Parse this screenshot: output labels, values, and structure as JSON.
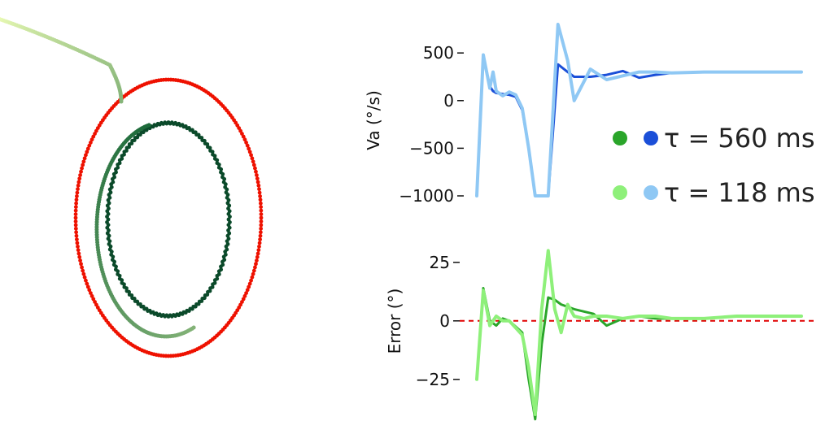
{
  "colors": {
    "red": "#ee1100",
    "dark_green": "#0b4a2a",
    "mid_green": "#2aa52a",
    "light_green": "#8ef07a",
    "dark_blue": "#1b4fd8",
    "light_blue": "#8fc8f4",
    "zero_line": "#e00000",
    "trail_start": "#f0ffb8",
    "trail_end": "#1c6a3a"
  },
  "chart_data": [
    {
      "type": "scatter",
      "description_series": [
        {
          "name": "",
          "shape": "ellipse",
          "values": [],
          "color": "#ee1100"
        },
        {
          "name": "",
          "shape": "ellipse",
          "values": [],
          "color": "#0b4a2a"
        },
        {
          "name": "",
          "shape": "trajectory",
          "values": [],
          "color": "#6cbf6c"
        }
      ]
    },
    {
      "type": "line",
      "title": "",
      "xlabel": "",
      "ylabel": "Va (°/s)",
      "ylim": [
        -1000,
        800
      ],
      "yticks": [
        500,
        0,
        -500,
        -1000
      ],
      "ytick_labels": [
        "500",
        "0",
        "−500",
        "−1000"
      ],
      "x": [
        0,
        0.02,
        0.04,
        0.05,
        0.06,
        0.08,
        0.1,
        0.12,
        0.14,
        0.16,
        0.18,
        0.2,
        0.22,
        0.25,
        0.28,
        0.3,
        0.35,
        0.4,
        0.45,
        0.5,
        0.55,
        0.6,
        0.7,
        0.8,
        0.9,
        1.0
      ],
      "series": [
        {
          "name": "τ = 560 ms",
          "color": "#1b4fd8",
          "values": [
            -1000,
            480,
            150,
            100,
            80,
            70,
            60,
            40,
            -100,
            -500,
            -1000,
            -1000,
            -1000,
            380,
            300,
            250,
            250,
            270,
            310,
            240,
            270,
            290,
            300,
            300,
            300,
            300
          ]
        },
        {
          "name": "τ = 118 ms",
          "color": "#8fc8f4",
          "values": [
            -1000,
            480,
            130,
            300,
            100,
            50,
            90,
            60,
            -80,
            -500,
            -1000,
            -1000,
            -1000,
            800,
            420,
            0,
            330,
            220,
            260,
            300,
            300,
            290,
            300,
            300,
            300,
            300
          ]
        }
      ],
      "legend": [
        {
          "label": "τ = 560 ms",
          "colors": [
            "#2aa52a",
            "#1b4fd8"
          ]
        },
        {
          "label": "τ = 118 ms",
          "colors": [
            "#8ef07a",
            "#8fc8f4"
          ]
        }
      ],
      "legend_position": "right"
    },
    {
      "type": "line",
      "title": "",
      "xlabel": "",
      "ylabel": "Error (°)",
      "ylim": [
        -40,
        35
      ],
      "yticks": [
        25,
        0,
        -25
      ],
      "ytick_labels": [
        "25",
        "0",
        "−25"
      ],
      "reference_line": {
        "y": 0,
        "style": "dashed",
        "color": "#e00000"
      },
      "x": [
        0,
        0.02,
        0.04,
        0.06,
        0.08,
        0.1,
        0.14,
        0.16,
        0.18,
        0.2,
        0.22,
        0.24,
        0.26,
        0.28,
        0.3,
        0.33,
        0.36,
        0.4,
        0.45,
        0.5,
        0.55,
        0.6,
        0.7,
        0.8,
        0.9,
        1.0
      ],
      "series": [
        {
          "name": "τ = 560 ms",
          "color": "#2aa52a",
          "values": [
            -25,
            14,
            0,
            -2,
            1,
            0,
            -5,
            -25,
            -42,
            -10,
            10,
            9,
            7,
            6,
            5,
            4,
            3,
            -2,
            1,
            2,
            1,
            1,
            1,
            2,
            2,
            2
          ]
        },
        {
          "name": "τ = 118 ms",
          "color": "#8ef07a",
          "values": [
            -25,
            13,
            -2,
            2,
            0,
            0,
            -6,
            -20,
            -40,
            5,
            30,
            5,
            -5,
            7,
            2,
            1,
            2,
            2,
            1,
            2,
            2,
            1,
            1,
            2,
            2,
            2
          ]
        }
      ]
    }
  ]
}
